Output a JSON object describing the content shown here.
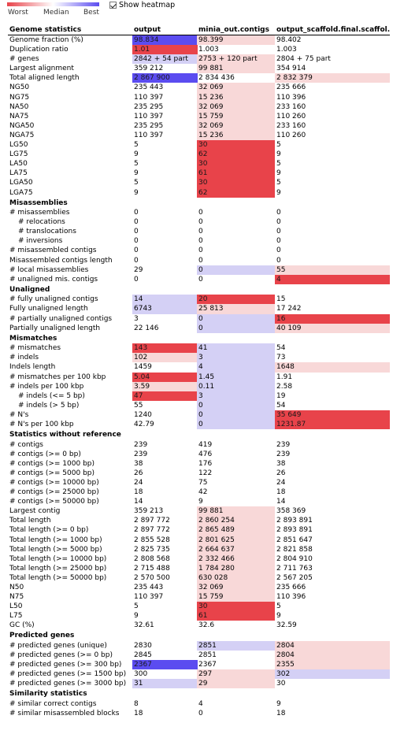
{
  "legend": {
    "worst": "Worst",
    "median": "Median",
    "best": "Best",
    "worst_color": "#e8434a",
    "best_color": "#5b4cf0"
  },
  "heatmap_toggle": {
    "label": "Show heatmap",
    "checked": true
  },
  "columns": [
    "output",
    "minia_out.contigs",
    "output_scaffold.final.scaffol..."
  ],
  "sections": [
    {
      "title": "Genome statistics",
      "is_header": true,
      "rows": [
        {
          "label": "Genome fraction (%)",
          "cells": [
            {
              "v": "98.834",
              "bg": "#5b4cf0"
            },
            {
              "v": "98.399",
              "bg": "#f8d8d8"
            },
            {
              "v": "98.402"
            }
          ]
        },
        {
          "label": "Duplication ratio",
          "cells": [
            {
              "v": "1.01",
              "bg": "#e8434a"
            },
            {
              "v": "1.003"
            },
            {
              "v": "1.003"
            }
          ]
        },
        {
          "label": "# genes",
          "cells": [
            {
              "v": "2842 + 54 part",
              "bg": "#d4d0f5"
            },
            {
              "v": "2753 + 120 part",
              "bg": "#f8d8d8"
            },
            {
              "v": "2804 + 75 part"
            }
          ]
        },
        {
          "label": "Largest alignment",
          "cells": [
            {
              "v": "359 212"
            },
            {
              "v": "99 881",
              "bg": "#f8d8d8"
            },
            {
              "v": "354 914"
            }
          ]
        },
        {
          "label": "Total aligned length",
          "cells": [
            {
              "v": "2 867 900",
              "bg": "#5b4cf0"
            },
            {
              "v": "2 834 436"
            },
            {
              "v": "2 832 379",
              "bg": "#f8d8d8"
            }
          ]
        },
        {
          "label": "NG50",
          "cells": [
            {
              "v": "235 443"
            },
            {
              "v": "32 069",
              "bg": "#f8d8d8"
            },
            {
              "v": "235 666"
            }
          ]
        },
        {
          "label": "NG75",
          "cells": [
            {
              "v": "110 397"
            },
            {
              "v": "15 236",
              "bg": "#f8d8d8"
            },
            {
              "v": "110 396"
            }
          ]
        },
        {
          "label": "NA50",
          "cells": [
            {
              "v": "235 295"
            },
            {
              "v": "32 069",
              "bg": "#f8d8d8"
            },
            {
              "v": "233 160"
            }
          ]
        },
        {
          "label": "NA75",
          "cells": [
            {
              "v": "110 397"
            },
            {
              "v": "15 759",
              "bg": "#f8d8d8"
            },
            {
              "v": "110 260"
            }
          ]
        },
        {
          "label": "NGA50",
          "cells": [
            {
              "v": "235 295"
            },
            {
              "v": "32 069",
              "bg": "#f8d8d8"
            },
            {
              "v": "233 160"
            }
          ]
        },
        {
          "label": "NGA75",
          "cells": [
            {
              "v": "110 397"
            },
            {
              "v": "15 236",
              "bg": "#f8d8d8"
            },
            {
              "v": "110 260"
            }
          ]
        },
        {
          "label": "LG50",
          "cells": [
            {
              "v": "5"
            },
            {
              "v": "30",
              "bg": "#e8434a"
            },
            {
              "v": "5"
            }
          ]
        },
        {
          "label": "LG75",
          "cells": [
            {
              "v": "9"
            },
            {
              "v": "62",
              "bg": "#e8434a"
            },
            {
              "v": "9"
            }
          ]
        },
        {
          "label": "LA50",
          "cells": [
            {
              "v": "5"
            },
            {
              "v": "30",
              "bg": "#e8434a"
            },
            {
              "v": "5"
            }
          ]
        },
        {
          "label": "LA75",
          "cells": [
            {
              "v": "9"
            },
            {
              "v": "61",
              "bg": "#e8434a"
            },
            {
              "v": "9"
            }
          ]
        },
        {
          "label": "LGA50",
          "cells": [
            {
              "v": "5"
            },
            {
              "v": "30",
              "bg": "#e8434a"
            },
            {
              "v": "5"
            }
          ]
        },
        {
          "label": "LGA75",
          "cells": [
            {
              "v": "9"
            },
            {
              "v": "62",
              "bg": "#e8434a"
            },
            {
              "v": "9"
            }
          ]
        }
      ]
    },
    {
      "title": "Misassemblies",
      "rows": [
        {
          "label": "# misassemblies",
          "ind": 1,
          "cells": [
            {
              "v": "0"
            },
            {
              "v": "0"
            },
            {
              "v": "0"
            }
          ]
        },
        {
          "label": "# relocations",
          "ind": 2,
          "cells": [
            {
              "v": "0"
            },
            {
              "v": "0"
            },
            {
              "v": "0"
            }
          ]
        },
        {
          "label": "# translocations",
          "ind": 2,
          "cells": [
            {
              "v": "0"
            },
            {
              "v": "0"
            },
            {
              "v": "0"
            }
          ]
        },
        {
          "label": "# inversions",
          "ind": 2,
          "cells": [
            {
              "v": "0"
            },
            {
              "v": "0"
            },
            {
              "v": "0"
            }
          ]
        },
        {
          "label": "# misassembled contigs",
          "cells": [
            {
              "v": "0"
            },
            {
              "v": "0"
            },
            {
              "v": "0"
            }
          ]
        },
        {
          "label": "Misassembled contigs length",
          "cells": [
            {
              "v": "0"
            },
            {
              "v": "0"
            },
            {
              "v": "0"
            }
          ]
        },
        {
          "label": "# local misassemblies",
          "cells": [
            {
              "v": "29"
            },
            {
              "v": "0",
              "bg": "#d4d0f5"
            },
            {
              "v": "55",
              "bg": "#f8d8d8"
            }
          ]
        },
        {
          "label": "# unaligned mis. contigs",
          "cells": [
            {
              "v": "0"
            },
            {
              "v": "0"
            },
            {
              "v": "4",
              "bg": "#e8434a"
            }
          ]
        }
      ]
    },
    {
      "title": "Unaligned",
      "rows": [
        {
          "label": "# fully unaligned contigs",
          "cells": [
            {
              "v": "14",
              "bg": "#d4d0f5"
            },
            {
              "v": "20",
              "bg": "#e8434a"
            },
            {
              "v": "15"
            }
          ]
        },
        {
          "label": "Fully unaligned length",
          "cells": [
            {
              "v": "6743",
              "bg": "#d4d0f5"
            },
            {
              "v": "25 813",
              "bg": "#f8d8d8"
            },
            {
              "v": "17 242"
            }
          ]
        },
        {
          "label": "# partially unaligned contigs",
          "cells": [
            {
              "v": "3"
            },
            {
              "v": "0",
              "bg": "#d4d0f5"
            },
            {
              "v": "16",
              "bg": "#e8434a"
            }
          ]
        },
        {
          "label": "Partially unaligned length",
          "cells": [
            {
              "v": "22 146"
            },
            {
              "v": "0",
              "bg": "#d4d0f5"
            },
            {
              "v": "40 109",
              "bg": "#f8d8d8"
            }
          ]
        }
      ]
    },
    {
      "title": "Mismatches",
      "rows": [
        {
          "label": "# mismatches",
          "cells": [
            {
              "v": "143",
              "bg": "#e8434a"
            },
            {
              "v": "41",
              "bg": "#d4d0f5"
            },
            {
              "v": "54"
            }
          ]
        },
        {
          "label": "# indels",
          "cells": [
            {
              "v": "102",
              "bg": "#f8d8d8"
            },
            {
              "v": "3",
              "bg": "#d4d0f5"
            },
            {
              "v": "73"
            }
          ]
        },
        {
          "label": "Indels length",
          "cells": [
            {
              "v": "1459"
            },
            {
              "v": "4",
              "bg": "#d4d0f5"
            },
            {
              "v": "1648",
              "bg": "#f8d8d8"
            }
          ]
        },
        {
          "label": "# mismatches per 100 kbp",
          "cells": [
            {
              "v": "5.04",
              "bg": "#e8434a"
            },
            {
              "v": "1.45",
              "bg": "#d4d0f5"
            },
            {
              "v": "1.91"
            }
          ]
        },
        {
          "label": "# indels per 100 kbp",
          "cells": [
            {
              "v": "3.59",
              "bg": "#f8d8d8"
            },
            {
              "v": "0.11",
              "bg": "#d4d0f5"
            },
            {
              "v": "2.58"
            }
          ]
        },
        {
          "label": "# indels (<= 5 bp)",
          "ind": 2,
          "cells": [
            {
              "v": "47",
              "bg": "#e8434a"
            },
            {
              "v": "3",
              "bg": "#d4d0f5"
            },
            {
              "v": "19"
            }
          ]
        },
        {
          "label": "# indels (> 5 bp)",
          "ind": 2,
          "cells": [
            {
              "v": "55"
            },
            {
              "v": "0",
              "bg": "#d4d0f5"
            },
            {
              "v": "54"
            }
          ]
        },
        {
          "label": "# N's",
          "cells": [
            {
              "v": "1240"
            },
            {
              "v": "0",
              "bg": "#d4d0f5"
            },
            {
              "v": "35 649",
              "bg": "#e8434a"
            }
          ]
        },
        {
          "label": "# N's per 100 kbp",
          "cells": [
            {
              "v": "42.79"
            },
            {
              "v": "0",
              "bg": "#d4d0f5"
            },
            {
              "v": "1231.87",
              "bg": "#e8434a"
            }
          ]
        }
      ]
    },
    {
      "title": "Statistics without reference",
      "rows": [
        {
          "label": "# contigs",
          "cells": [
            {
              "v": "239"
            },
            {
              "v": "419"
            },
            {
              "v": "239"
            }
          ]
        },
        {
          "label": "# contigs (>= 0 bp)",
          "cells": [
            {
              "v": "239"
            },
            {
              "v": "476"
            },
            {
              "v": "239"
            }
          ]
        },
        {
          "label": "# contigs (>= 1000 bp)",
          "cells": [
            {
              "v": "38"
            },
            {
              "v": "176"
            },
            {
              "v": "38"
            }
          ]
        },
        {
          "label": "# contigs (>= 5000 bp)",
          "cells": [
            {
              "v": "26"
            },
            {
              "v": "122"
            },
            {
              "v": "26"
            }
          ]
        },
        {
          "label": "# contigs (>= 10000 bp)",
          "cells": [
            {
              "v": "24"
            },
            {
              "v": "75"
            },
            {
              "v": "24"
            }
          ]
        },
        {
          "label": "# contigs (>= 25000 bp)",
          "cells": [
            {
              "v": "18"
            },
            {
              "v": "42"
            },
            {
              "v": "18"
            }
          ]
        },
        {
          "label": "# contigs (>= 50000 bp)",
          "cells": [
            {
              "v": "14"
            },
            {
              "v": "9"
            },
            {
              "v": "14"
            }
          ]
        },
        {
          "label": "Largest contig",
          "cells": [
            {
              "v": "359 213"
            },
            {
              "v": "99 881",
              "bg": "#f8d8d8"
            },
            {
              "v": "358 369"
            }
          ]
        },
        {
          "label": "Total length",
          "cells": [
            {
              "v": "2 897 772"
            },
            {
              "v": "2 860 254",
              "bg": "#f8d8d8"
            },
            {
              "v": "2 893 891"
            }
          ]
        },
        {
          "label": "Total length (>= 0 bp)",
          "cells": [
            {
              "v": "2 897 772"
            },
            {
              "v": "2 865 489",
              "bg": "#f8d8d8"
            },
            {
              "v": "2 893 891"
            }
          ]
        },
        {
          "label": "Total length (>= 1000 bp)",
          "cells": [
            {
              "v": "2 855 528"
            },
            {
              "v": "2 801 625",
              "bg": "#f8d8d8"
            },
            {
              "v": "2 851 647"
            }
          ]
        },
        {
          "label": "Total length (>= 5000 bp)",
          "cells": [
            {
              "v": "2 825 735"
            },
            {
              "v": "2 664 637",
              "bg": "#f8d8d8"
            },
            {
              "v": "2 821 858"
            }
          ]
        },
        {
          "label": "Total length (>= 10000 bp)",
          "cells": [
            {
              "v": "2 808 568"
            },
            {
              "v": "2 332 466",
              "bg": "#f8d8d8"
            },
            {
              "v": "2 804 910"
            }
          ]
        },
        {
          "label": "Total length (>= 25000 bp)",
          "cells": [
            {
              "v": "2 715 488"
            },
            {
              "v": "1 784 280",
              "bg": "#f8d8d8"
            },
            {
              "v": "2 711 763"
            }
          ]
        },
        {
          "label": "Total length (>= 50000 bp)",
          "cells": [
            {
              "v": "2 570 500"
            },
            {
              "v": "630 028",
              "bg": "#f8d8d8"
            },
            {
              "v": "2 567 205"
            }
          ]
        },
        {
          "label": "N50",
          "cells": [
            {
              "v": "235 443"
            },
            {
              "v": "32 069",
              "bg": "#f8d8d8"
            },
            {
              "v": "235 666"
            }
          ]
        },
        {
          "label": "N75",
          "cells": [
            {
              "v": "110 397"
            },
            {
              "v": "15 759",
              "bg": "#f8d8d8"
            },
            {
              "v": "110 396"
            }
          ]
        },
        {
          "label": "L50",
          "cells": [
            {
              "v": "5"
            },
            {
              "v": "30",
              "bg": "#e8434a"
            },
            {
              "v": "5"
            }
          ]
        },
        {
          "label": "L75",
          "cells": [
            {
              "v": "9"
            },
            {
              "v": "61",
              "bg": "#e8434a"
            },
            {
              "v": "9"
            }
          ]
        },
        {
          "label": "GC (%)",
          "cells": [
            {
              "v": "32.61"
            },
            {
              "v": "32.6"
            },
            {
              "v": "32.59"
            }
          ]
        }
      ]
    },
    {
      "title": "Predicted genes",
      "rows": [
        {
          "label": "# predicted genes (unique)",
          "cells": [
            {
              "v": "2830"
            },
            {
              "v": "2851",
              "bg": "#d4d0f5"
            },
            {
              "v": "2804",
              "bg": "#f8d8d8"
            }
          ]
        },
        {
          "label": "# predicted genes (>= 0 bp)",
          "cells": [
            {
              "v": "2845"
            },
            {
              "v": "2851"
            },
            {
              "v": "2804",
              "bg": "#f8d8d8"
            }
          ]
        },
        {
          "label": "# predicted genes (>= 300 bp)",
          "cells": [
            {
              "v": "2367",
              "bg": "#5b4cf0"
            },
            {
              "v": "2367"
            },
            {
              "v": "2355",
              "bg": "#f8d8d8"
            }
          ]
        },
        {
          "label": "# predicted genes (>= 1500 bp)",
          "cells": [
            {
              "v": "300"
            },
            {
              "v": "297",
              "bg": "#f8d8d8"
            },
            {
              "v": "302",
              "bg": "#d4d0f5"
            }
          ]
        },
        {
          "label": "# predicted genes (>= 3000 bp)",
          "cells": [
            {
              "v": "31",
              "bg": "#d4d0f5"
            },
            {
              "v": "29",
              "bg": "#f8d8d8"
            },
            {
              "v": "30"
            }
          ]
        }
      ]
    },
    {
      "title": "Similarity statistics",
      "rows": [
        {
          "label": "# similar correct contigs",
          "cells": [
            {
              "v": "8"
            },
            {
              "v": "4"
            },
            {
              "v": "9"
            }
          ]
        },
        {
          "label": "# similar misassembled blocks",
          "cells": [
            {
              "v": "18"
            },
            {
              "v": "0"
            },
            {
              "v": "18"
            }
          ]
        }
      ]
    }
  ]
}
